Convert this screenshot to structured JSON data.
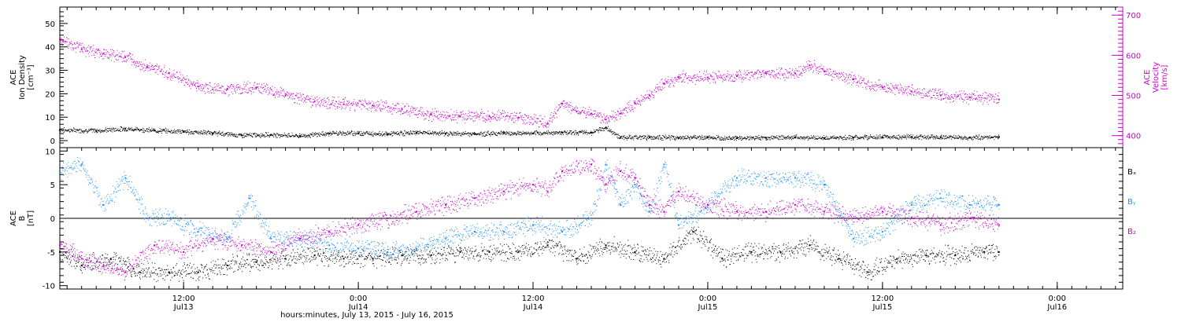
{
  "chart_data": [
    {
      "type": "scatter",
      "title": "",
      "x_axis": {
        "label": "hours:minutes, July 13, 2015 - July 16, 2015",
        "ticks": [
          {
            "hours": 12,
            "line1": "12:00",
            "line2": "Jul13"
          },
          {
            "hours": 24,
            "line1": "0:00",
            "line2": "Jul14"
          },
          {
            "hours": 36,
            "line1": "12:00",
            "line2": "Jul14"
          },
          {
            "hours": 48,
            "line1": "0:00",
            "line2": "Jul15"
          },
          {
            "hours": 60,
            "line1": "12:00",
            "line2": "Jul15"
          },
          {
            "hours": 72,
            "line1": "0:00",
            "line2": "Jul16"
          }
        ],
        "range_hours": [
          3.5,
          76.5
        ]
      },
      "panels": [
        {
          "id": "density-velocity",
          "left_axis": {
            "label_lines": [
              "ACE",
              "Ion Density",
              "[cm⁻³]"
            ],
            "ylim": [
              -3,
              57
            ],
            "ticks": [
              0,
              10,
              20,
              30,
              40,
              50
            ],
            "color": "#000000"
          },
          "right_axis": {
            "label_lines": [
              "ACE",
              "Velocity",
              "[km/s]"
            ],
            "ylim": [
              370,
              720
            ],
            "ticks": [
              400,
              500,
              600,
              700
            ],
            "color": "#cc00cc"
          },
          "series": [
            {
              "name": "",
              "axis": "left",
              "color": "#000000",
              "x_hours": [
                3.5,
                6,
                8,
                10,
                12,
                14,
                16,
                18,
                20,
                22,
                24,
                26,
                28,
                30,
                32,
                34,
                36,
                38,
                40,
                41,
                42,
                44,
                46,
                48,
                50,
                52,
                54,
                56,
                58,
                60,
                62,
                64,
                66,
                68
              ],
              "values": [
                4.5,
                4.2,
                5.0,
                4.3,
                3.8,
                3.2,
                2.2,
                2.5,
                2.0,
                3.0,
                3.2,
                2.8,
                3.4,
                3.0,
                2.8,
                3.2,
                3.0,
                3.5,
                3.4,
                5.5,
                1.2,
                1.4,
                1.2,
                1.3,
                1.0,
                1.2,
                1.4,
                1.1,
                1.3,
                1.5,
                1.6,
                1.4,
                1.3,
                1.5
              ]
            },
            {
              "name": "",
              "axis": "right",
              "color": "#cc00cc",
              "x_hours": [
                3.5,
                5,
                6.5,
                8,
                9.5,
                11,
                13,
                15,
                17,
                19,
                21,
                23,
                25,
                27,
                29,
                31,
                33,
                35,
                37,
                38,
                39,
                40,
                41,
                42,
                43,
                44,
                45,
                46,
                48,
                50,
                52,
                54,
                55,
                56,
                58,
                60,
                62,
                64,
                66,
                68
              ],
              "values": [
                640,
                615,
                605,
                595,
                570,
                555,
                522,
                515,
                520,
                500,
                485,
                478,
                475,
                465,
                452,
                448,
                448,
                445,
                430,
                480,
                460,
                455,
                440,
                455,
                480,
                500,
                530,
                545,
                545,
                548,
                555,
                555,
                575,
                560,
                540,
                520,
                510,
                500,
                495,
                490
              ]
            }
          ]
        },
        {
          "id": "magnetic-field",
          "left_axis": {
            "label_lines": [
              "ACE",
              "B",
              "[nT]"
            ],
            "ylim": [
              -10.5,
              10.5
            ],
            "ticks": [
              -10,
              -5,
              0,
              5,
              10
            ],
            "color": "#000000"
          },
          "zero_line": true,
          "series": [
            {
              "name": "Bₓ",
              "color": "#000000",
              "x_hours": [
                3.5,
                5,
                7,
                9,
                11,
                13,
                15,
                17,
                19,
                21,
                23,
                25,
                27,
                29,
                31,
                33,
                35,
                37,
                39,
                41,
                43,
                45,
                47,
                49,
                51,
                53,
                55,
                57,
                59,
                61,
                63,
                65,
                67,
                68
              ],
              "values": [
                -5,
                -7,
                -6,
                -8,
                -8,
                -8,
                -7,
                -6.5,
                -6,
                -5.5,
                -6,
                -6,
                -5.5,
                -5.5,
                -5,
                -5,
                -5,
                -4,
                -6,
                -4,
                -5,
                -6,
                -2,
                -6,
                -5,
                -5,
                -4,
                -6,
                -8,
                -6,
                -5.5,
                -5.5,
                -5,
                -5
              ]
            },
            {
              "name": "Bᵧ",
              "color": "#1e90ff",
              "x_hours": [
                3.5,
                5,
                6.5,
                8,
                9.5,
                11,
                13,
                15,
                16.5,
                18,
                20,
                22,
                24,
                26,
                28,
                30,
                32,
                34,
                36,
                38,
                40,
                41,
                42,
                43,
                44,
                45,
                46,
                48,
                50,
                52,
                54,
                56,
                58,
                60,
                62,
                64,
                66,
                68
              ],
              "values": [
                7,
                8,
                2,
                6,
                0,
                0,
                -2,
                -3,
                3,
                -3,
                -3,
                -4,
                -4.5,
                -5,
                -4.5,
                -3,
                -2,
                -2,
                -1,
                -2,
                0,
                8,
                2,
                5,
                1,
                8,
                -1,
                2,
                6,
                6,
                6,
                5,
                -3,
                -2,
                2,
                3,
                2,
                2
              ]
            },
            {
              "name": "B₂",
              "color": "#cc00cc",
              "x_hours": [
                3.5,
                5,
                6.5,
                8,
                10,
                12,
                14,
                16,
                18,
                20,
                22,
                24,
                26,
                28,
                30,
                32,
                34,
                36,
                37,
                38,
                40,
                41,
                42,
                43,
                44,
                45,
                46,
                48,
                50,
                52,
                54,
                56,
                58,
                60,
                62,
                64,
                66,
                68
              ],
              "values": [
                -4,
                -6,
                -7,
                -8,
                -4,
                -5,
                -3,
                -4,
                -5,
                -3,
                -2,
                -1,
                0,
                1,
                2,
                3,
                4,
                5,
                4,
                7,
                8,
                5,
                7,
                6,
                2,
                1,
                4,
                2,
                1,
                1,
                2,
                1,
                0,
                1,
                0,
                -1,
                0,
                -1
              ]
            }
          ]
        }
      ]
    }
  ]
}
